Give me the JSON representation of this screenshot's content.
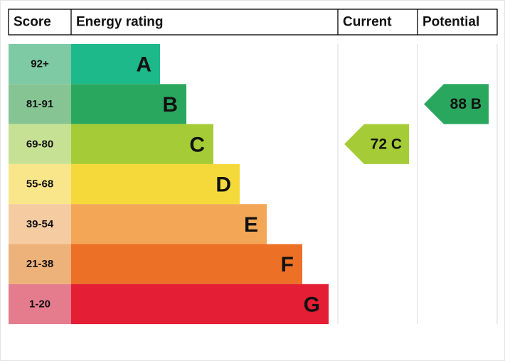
{
  "header": {
    "score": "Score",
    "energy_rating": "Energy rating",
    "current": "Current",
    "potential": "Potential"
  },
  "chart_data": {
    "type": "bar",
    "categories": [
      "A",
      "B",
      "C",
      "D",
      "E",
      "F",
      "G"
    ],
    "bands": [
      {
        "letter": "A",
        "range": "92+",
        "min": 92,
        "max": 100,
        "color": "#1db98a",
        "score_color": "#7dcaa5"
      },
      {
        "letter": "B",
        "range": "81-91",
        "min": 81,
        "max": 91,
        "color": "#2aa75e",
        "score_color": "#86c593"
      },
      {
        "letter": "C",
        "range": "69-80",
        "min": 69,
        "max": 80,
        "color": "#a5cc37",
        "score_color": "#c7e194"
      },
      {
        "letter": "D",
        "range": "55-68",
        "min": 55,
        "max": 68,
        "color": "#f5d93a",
        "score_color": "#f9e68a"
      },
      {
        "letter": "E",
        "range": "39-54",
        "min": 39,
        "max": 54,
        "color": "#f3a756",
        "score_color": "#f5cba2"
      },
      {
        "letter": "F",
        "range": "21-38",
        "min": 21,
        "max": 38,
        "color": "#ec7025",
        "score_color": "#edb17a"
      },
      {
        "letter": "G",
        "range": "1-20",
        "min": 1,
        "max": 20,
        "color": "#e31e35",
        "score_color": "#e57c8e"
      }
    ],
    "current": {
      "value": 72,
      "band": "C",
      "label": "72 C",
      "color": "#a5cc37"
    },
    "potential": {
      "value": 88,
      "band": "B",
      "label": "88 B",
      "color": "#2aa75e"
    }
  }
}
